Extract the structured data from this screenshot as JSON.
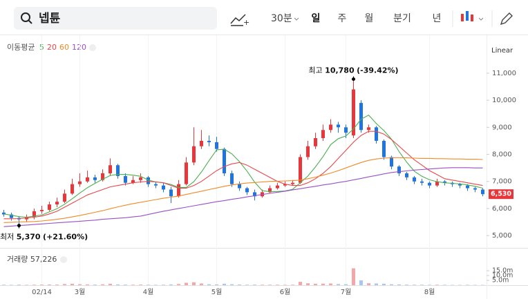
{
  "toolbar": {
    "search": "넵튠",
    "interval": "30분",
    "periods": [
      "일",
      "주",
      "월",
      "분기",
      "년"
    ],
    "active_period": "일"
  },
  "chart_data": {
    "type": "candlestick",
    "scale": "Linear",
    "ma_title": "이동평균",
    "up_color": "#e8373a",
    "down_color": "#1f74e0",
    "categories": [
      null,
      null,
      null,
      null,
      null,
      "02/14",
      null,
      null,
      null,
      null,
      "3월",
      null,
      null,
      null,
      null,
      null,
      null,
      null,
      null,
      "4월",
      null,
      null,
      null,
      null,
      null,
      null,
      null,
      null,
      "5월",
      null,
      null,
      null,
      null,
      null,
      null,
      null,
      null,
      "6월",
      null,
      null,
      null,
      null,
      null,
      null,
      null,
      "7월",
      null,
      null,
      null,
      null,
      null,
      null,
      null,
      null,
      null,
      null,
      "8월",
      null,
      null,
      null,
      null,
      null,
      null,
      null
    ],
    "open": [
      5850,
      5780,
      5650,
      5600,
      5680,
      5900,
      5950,
      6150,
      6250,
      6550,
      6900,
      7000,
      7150,
      7050,
      7300,
      7600,
      7200,
      6950,
      7050,
      7150,
      6900,
      6850,
      6700,
      6450,
      6900,
      7700,
      8300,
      8500,
      8450,
      8200,
      7300,
      6900,
      6750,
      6600,
      6450,
      6600,
      6750,
      6850,
      6900,
      6950,
      7900,
      8300,
      8600,
      8900,
      9100,
      9000,
      8700,
      9900,
      8900,
      9000,
      8500,
      7900,
      7550,
      7300,
      7150,
      7000,
      6950,
      6850,
      7000,
      6950,
      6900,
      6850,
      6750,
      6700
    ],
    "high": [
      5950,
      5850,
      5720,
      5780,
      6000,
      6100,
      6250,
      6400,
      6700,
      7100,
      7300,
      7400,
      7250,
      7450,
      7850,
      7650,
      7300,
      7200,
      7300,
      7200,
      7000,
      6950,
      6800,
      7050,
      7900,
      9000,
      8900,
      8700,
      8650,
      8250,
      7400,
      7000,
      6800,
      6700,
      6700,
      6850,
      6950,
      7000,
      7050,
      8000,
      8500,
      8800,
      9100,
      9300,
      9200,
      9100,
      10780,
      10000,
      9100,
      9050,
      8550,
      7950,
      7600,
      7350,
      7200,
      7100,
      7000,
      7100,
      7050,
      7000,
      6950,
      6900,
      6800,
      6750
    ],
    "low": [
      5700,
      5550,
      5370,
      5500,
      5600,
      5800,
      5900,
      6050,
      6200,
      6500,
      6800,
      6950,
      6950,
      7000,
      7200,
      7100,
      6850,
      6900,
      6950,
      6800,
      6750,
      6600,
      6200,
      6400,
      6850,
      7600,
      8200,
      8300,
      8100,
      7200,
      6800,
      6650,
      6500,
      6300,
      6400,
      6550,
      6700,
      6800,
      6850,
      6900,
      7800,
      8200,
      8500,
      8800,
      8800,
      8600,
      8600,
      8800,
      8800,
      8400,
      7800,
      7450,
      7200,
      7050,
      6900,
      6850,
      6750,
      6800,
      6850,
      6800,
      6750,
      6650,
      6600,
      6450
    ],
    "close": [
      5780,
      5650,
      5600,
      5680,
      5900,
      5950,
      6150,
      6250,
      6550,
      6900,
      7000,
      7150,
      7050,
      7300,
      7600,
      7200,
      6950,
      7050,
      7150,
      6900,
      6850,
      6700,
      6450,
      6900,
      7700,
      8300,
      8500,
      8450,
      8200,
      7300,
      6900,
      6750,
      6600,
      6450,
      6600,
      6750,
      6850,
      6900,
      6950,
      7900,
      8300,
      8600,
      8900,
      9100,
      9000,
      8800,
      10400,
      8900,
      9000,
      8500,
      7900,
      7550,
      7300,
      7150,
      7000,
      6950,
      6850,
      7000,
      6950,
      6900,
      6850,
      6750,
      6700,
      6530
    ],
    "series": [
      {
        "name": "5",
        "color": "#4caf50",
        "values": [
          5800,
          5750,
          5700,
          5680,
          5720,
          5760,
          5880,
          5990,
          6160,
          6360,
          6570,
          6770,
          6930,
          7080,
          7220,
          7260,
          7260,
          7230,
          7190,
          7050,
          6980,
          6950,
          6890,
          6780,
          6780,
          6990,
          7350,
          7770,
          8170,
          8190,
          8020,
          7730,
          7380,
          6970,
          6660,
          6620,
          6630,
          6650,
          6710,
          6950,
          7200,
          7540,
          7920,
          8360,
          8580,
          8680,
          8940,
          9300,
          9450,
          9140,
          8880,
          8560,
          8100,
          7710,
          7380,
          7190,
          7060,
          6990,
          6950,
          6930,
          6910,
          6870,
          6820,
          6750
        ]
      },
      {
        "name": "20",
        "color": "#e8474a",
        "values": [
          5620,
          5620,
          5630,
          5650,
          5680,
          5720,
          5800,
          5900,
          6050,
          6200,
          6350,
          6500,
          6600,
          6700,
          6800,
          6850,
          6900,
          6950,
          6980,
          7000,
          6980,
          6950,
          6850,
          6750,
          6750,
          6850,
          7000,
          7200,
          7400,
          7550,
          7650,
          7700,
          7600,
          7450,
          7300,
          7150,
          7000,
          6900,
          6850,
          6850,
          6950,
          7100,
          7300,
          7550,
          7850,
          8150,
          8450,
          8700,
          8850,
          8850,
          8750,
          8550,
          8300,
          8050,
          7800,
          7600,
          7400,
          7250,
          7100,
          7050,
          7000,
          6950,
          6900,
          6850
        ]
      },
      {
        "name": "60",
        "color": "#f08a24",
        "values": [
          5480,
          5490,
          5500,
          5510,
          5520,
          5540,
          5570,
          5600,
          5640,
          5690,
          5740,
          5800,
          5860,
          5920,
          5990,
          6060,
          6120,
          6180,
          6230,
          6280,
          6330,
          6380,
          6420,
          6460,
          6520,
          6580,
          6640,
          6700,
          6760,
          6820,
          6870,
          6910,
          6940,
          6960,
          6980,
          7000,
          7010,
          7020,
          7030,
          7050,
          7100,
          7160,
          7230,
          7310,
          7400,
          7500,
          7600,
          7700,
          7780,
          7830,
          7860,
          7880,
          7880,
          7870,
          7860,
          7850,
          7850,
          7840,
          7840,
          7830,
          7830,
          7820,
          7820,
          7810
        ]
      },
      {
        "name": "120",
        "color": "#9b4fc4",
        "values": [
          5330,
          5350,
          5370,
          5390,
          5410,
          5430,
          5450,
          5470,
          5490,
          5510,
          5530,
          5550,
          5570,
          5600,
          5620,
          5640,
          5660,
          5690,
          5720,
          5780,
          5840,
          5900,
          5950,
          6000,
          6050,
          6100,
          6150,
          6200,
          6250,
          6290,
          6340,
          6380,
          6430,
          6470,
          6520,
          6560,
          6600,
          6640,
          6690,
          6730,
          6780,
          6820,
          6870,
          6910,
          6960,
          7000,
          7060,
          7110,
          7170,
          7220,
          7280,
          7330,
          7360,
          7390,
          7420,
          7440,
          7460,
          7480,
          7500,
          7510,
          7510,
          7510,
          7500,
          7500
        ]
      }
    ],
    "ylim": [
      4570,
      12300
    ],
    "yticks": [
      {
        "value": 11000,
        "label": "11,000"
      },
      {
        "value": 10000,
        "label": "10,000"
      },
      {
        "value": 9000,
        "label": "9,000"
      },
      {
        "value": 8000,
        "label": "8,000"
      },
      {
        "value": 7000,
        "label": "7,000"
      },
      {
        "value": 6000,
        "label": "6,000"
      },
      {
        "value": 5000,
        "label": "5,000"
      }
    ],
    "current_price": {
      "value": 6530,
      "label": "6,530"
    },
    "high_note": {
      "text": "최고",
      "value": 10780,
      "value_label": "10,780",
      "change": "(-39.42%)"
    },
    "low_note": {
      "text": "최저",
      "value": 5370,
      "value_label": "5,370",
      "change": "(+21.60%)"
    },
    "volume": {
      "title": "거래량",
      "last": "57,226",
      "values": [
        0.5,
        0.4,
        0.6,
        0.4,
        0.5,
        0.6,
        0.7,
        0.6,
        1.2,
        1.5,
        1.0,
        0.8,
        0.6,
        0.9,
        1.5,
        0.8,
        0.6,
        0.5,
        0.6,
        0.5,
        0.4,
        0.5,
        0.8,
        1.2,
        2.5,
        3.0,
        1.8,
        1.0,
        0.8,
        1.5,
        1.0,
        0.7,
        0.5,
        0.6,
        0.5,
        0.5,
        0.5,
        0.4,
        0.5,
        3.5,
        2.0,
        1.5,
        1.6,
        1.8,
        1.2,
        1.0,
        17.5,
        5.0,
        2.0,
        1.8,
        1.5,
        1.0,
        0.8,
        0.6,
        0.5,
        0.5,
        0.4,
        0.5,
        0.4,
        0.3,
        0.3,
        0.4,
        0.3,
        0.3
      ],
      "ylim": [
        0,
        23.6
      ],
      "yticks": [
        {
          "value": 15,
          "label": "15.0m"
        },
        {
          "value": 10,
          "label": "10.0m"
        },
        {
          "value": 5,
          "label": "5.0m"
        }
      ]
    }
  }
}
